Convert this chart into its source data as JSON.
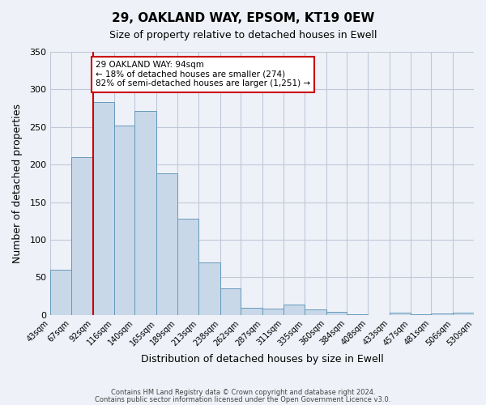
{
  "title": "29, OAKLAND WAY, EPSOM, KT19 0EW",
  "subtitle": "Size of property relative to detached houses in Ewell",
  "xlabel": "Distribution of detached houses by size in Ewell",
  "ylabel": "Number of detached properties",
  "bar_color": "#c8d8e8",
  "bar_edge_color": "#6699bb",
  "grid_color": "#c0c8d8",
  "background_color": "#eef2f8",
  "bin_edges": [
    43,
    67,
    92,
    116,
    140,
    165,
    189,
    213,
    238,
    262,
    287,
    311,
    335,
    360,
    384,
    408,
    433,
    457,
    481,
    506,
    530
  ],
  "bin_labels": [
    "43sqm",
    "67sqm",
    "92sqm",
    "116sqm",
    "140sqm",
    "165sqm",
    "189sqm",
    "213sqm",
    "238sqm",
    "262sqm",
    "287sqm",
    "311sqm",
    "335sqm",
    "360sqm",
    "384sqm",
    "408sqm",
    "433sqm",
    "457sqm",
    "481sqm",
    "506sqm",
    "530sqm"
  ],
  "bar_heights": [
    60,
    210,
    283,
    252,
    271,
    188,
    128,
    70,
    35,
    10,
    8,
    14,
    7,
    4,
    1,
    0,
    3,
    1,
    2,
    3
  ],
  "property_line_x": 92,
  "property_line_color": "#cc0000",
  "annotation_text": "29 OAKLAND WAY: 94sqm\n← 18% of detached houses are smaller (274)\n82% of semi-detached houses are larger (1,251) →",
  "annotation_box_color": "#ffffff",
  "annotation_box_edge_color": "#cc0000",
  "ylim": [
    0,
    350
  ],
  "yticks": [
    0,
    50,
    100,
    150,
    200,
    250,
    300,
    350
  ],
  "footer_line1": "Contains HM Land Registry data © Crown copyright and database right 2024.",
  "footer_line2": "Contains public sector information licensed under the Open Government Licence v3.0."
}
